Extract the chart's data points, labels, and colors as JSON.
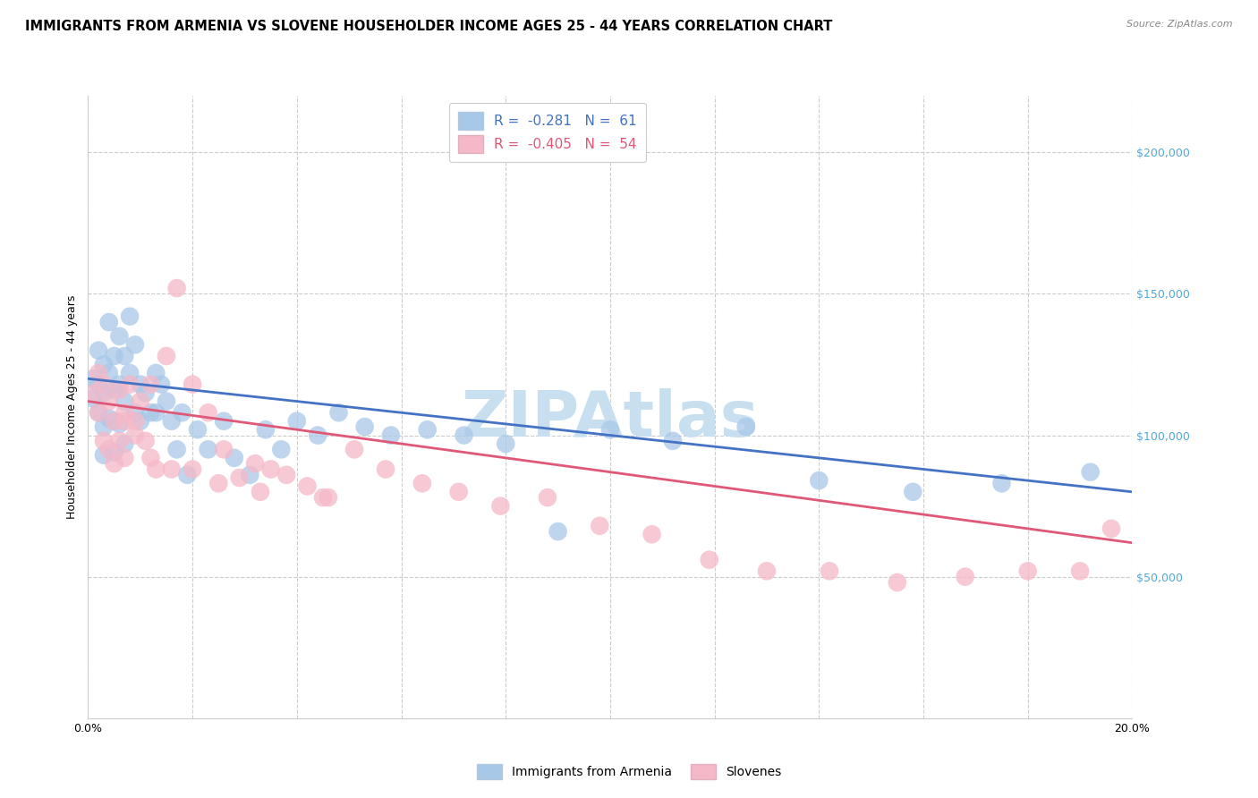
{
  "title": "IMMIGRANTS FROM ARMENIA VS SLOVENE HOUSEHOLDER INCOME AGES 25 - 44 YEARS CORRELATION CHART",
  "source": "Source: ZipAtlas.com",
  "ylabel": "Householder Income Ages 25 - 44 years",
  "xlim": [
    0.0,
    0.2
  ],
  "ylim": [
    0,
    220000
  ],
  "yticks": [
    50000,
    100000,
    150000,
    200000
  ],
  "ytick_labels": [
    "$50,000",
    "$100,000",
    "$150,000",
    "$200,000"
  ],
  "xticks": [
    0.0,
    0.02,
    0.04,
    0.06,
    0.08,
    0.1,
    0.12,
    0.14,
    0.16,
    0.18,
    0.2
  ],
  "xtick_labels": [
    "0.0%",
    "",
    "",
    "",
    "",
    "",
    "",
    "",
    "",
    "",
    "20.0%"
  ],
  "armenia_R": -0.281,
  "armenia_N": 61,
  "slovene_R": -0.405,
  "slovene_N": 54,
  "armenia_color": "#a8c8e8",
  "slovene_color": "#f5b8c8",
  "armenia_line_color": "#4472c4",
  "slovene_line_color": "#e05878",
  "ytick_color": "#4fa8e0",
  "title_fontsize": 10.5,
  "axis_label_fontsize": 9,
  "tick_fontsize": 9,
  "watermark_text": "ZIPAtlas",
  "watermark_color": "#c8dff0",
  "legend_label_1": "R =  -0.281   N =  61",
  "legend_label_2": "R =  -0.405   N =  54",
  "bottom_legend_1": "Immigrants from Armenia",
  "bottom_legend_2": "Slovenes",
  "armenia_x": [
    0.001,
    0.001,
    0.002,
    0.002,
    0.002,
    0.003,
    0.003,
    0.003,
    0.003,
    0.004,
    0.004,
    0.004,
    0.005,
    0.005,
    0.005,
    0.005,
    0.006,
    0.006,
    0.006,
    0.007,
    0.007,
    0.007,
    0.008,
    0.008,
    0.009,
    0.009,
    0.01,
    0.01,
    0.011,
    0.012,
    0.013,
    0.013,
    0.014,
    0.015,
    0.016,
    0.017,
    0.018,
    0.019,
    0.021,
    0.023,
    0.026,
    0.028,
    0.031,
    0.034,
    0.037,
    0.04,
    0.044,
    0.048,
    0.053,
    0.058,
    0.065,
    0.072,
    0.08,
    0.09,
    0.1,
    0.112,
    0.126,
    0.14,
    0.158,
    0.175,
    0.192
  ],
  "armenia_y": [
    120000,
    113000,
    130000,
    118000,
    108000,
    125000,
    115000,
    103000,
    93000,
    140000,
    122000,
    106000,
    128000,
    116000,
    105000,
    94000,
    135000,
    118000,
    104000,
    128000,
    112000,
    97000,
    142000,
    122000,
    132000,
    108000,
    118000,
    105000,
    115000,
    108000,
    122000,
    108000,
    118000,
    112000,
    105000,
    95000,
    108000,
    86000,
    102000,
    95000,
    105000,
    92000,
    86000,
    102000,
    95000,
    105000,
    100000,
    108000,
    103000,
    100000,
    102000,
    100000,
    97000,
    66000,
    102000,
    98000,
    103000,
    84000,
    80000,
    83000,
    87000
  ],
  "slovene_x": [
    0.001,
    0.002,
    0.002,
    0.003,
    0.003,
    0.004,
    0.004,
    0.005,
    0.005,
    0.006,
    0.006,
    0.007,
    0.007,
    0.008,
    0.009,
    0.01,
    0.011,
    0.012,
    0.013,
    0.015,
    0.017,
    0.02,
    0.023,
    0.026,
    0.029,
    0.032,
    0.035,
    0.038,
    0.042,
    0.046,
    0.051,
    0.057,
    0.064,
    0.071,
    0.079,
    0.088,
    0.098,
    0.108,
    0.119,
    0.13,
    0.142,
    0.155,
    0.168,
    0.18,
    0.19,
    0.196,
    0.007,
    0.009,
    0.012,
    0.016,
    0.02,
    0.025,
    0.033,
    0.045
  ],
  "slovene_y": [
    115000,
    122000,
    108000,
    118000,
    98000,
    112000,
    95000,
    105000,
    90000,
    116000,
    98000,
    108000,
    92000,
    118000,
    105000,
    112000,
    98000,
    118000,
    88000,
    128000,
    152000,
    118000,
    108000,
    95000,
    85000,
    90000,
    88000,
    86000,
    82000,
    78000,
    95000,
    88000,
    83000,
    80000,
    75000,
    78000,
    68000,
    65000,
    56000,
    52000,
    52000,
    48000,
    50000,
    52000,
    52000,
    67000,
    105000,
    100000,
    92000,
    88000,
    88000,
    83000,
    80000,
    78000
  ]
}
